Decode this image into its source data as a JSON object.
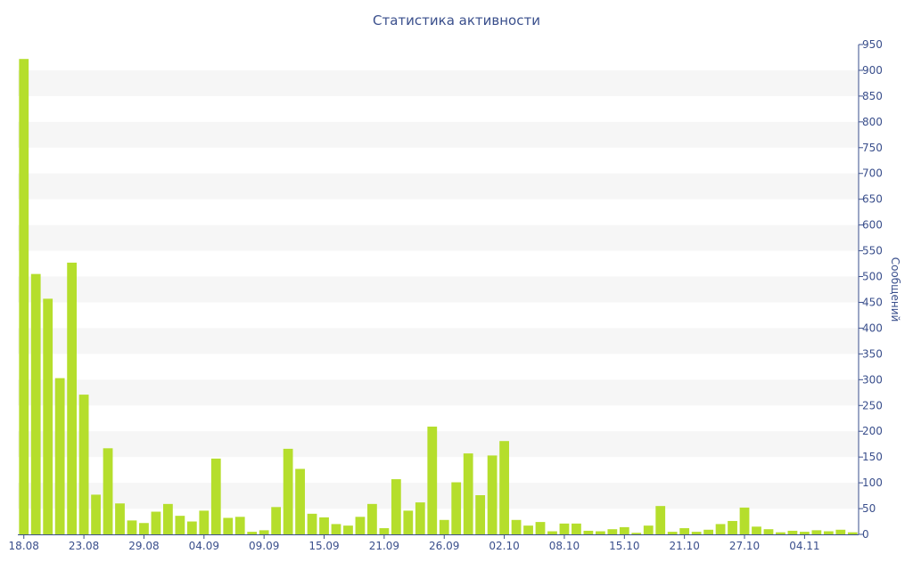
{
  "chart_data": {
    "type": "bar",
    "title": "Статистика активности",
    "ylabel": "Сообщений",
    "xlabel": "",
    "ylim": [
      0,
      950
    ],
    "y_tick_step": 50,
    "y_axis_side": "right",
    "grid": "alternating horizontal bands",
    "bar_color": "#b5de2c",
    "band_color": "#f6f6f6",
    "text_color": "#3a4f8c",
    "x_tick_labels": [
      {
        "index": 0,
        "label": "18.08"
      },
      {
        "index": 5,
        "label": "23.08"
      },
      {
        "index": 10,
        "label": "29.08"
      },
      {
        "index": 15,
        "label": "04.09"
      },
      {
        "index": 20,
        "label": "09.09"
      },
      {
        "index": 25,
        "label": "15.09"
      },
      {
        "index": 30,
        "label": "21.09"
      },
      {
        "index": 35,
        "label": "26.09"
      },
      {
        "index": 40,
        "label": "02.10"
      },
      {
        "index": 45,
        "label": "08.10"
      },
      {
        "index": 50,
        "label": "15.10"
      },
      {
        "index": 55,
        "label": "21.10"
      },
      {
        "index": 60,
        "label": "27.10"
      },
      {
        "index": 65,
        "label": "04.11"
      }
    ],
    "values": [
      922,
      505,
      457,
      303,
      527,
      271,
      77,
      167,
      60,
      27,
      22,
      44,
      59,
      36,
      25,
      46,
      147,
      32,
      34,
      5,
      8,
      53,
      166,
      127,
      40,
      33,
      20,
      17,
      34,
      59,
      12,
      107,
      46,
      62,
      209,
      28,
      101,
      157,
      76,
      153,
      181,
      28,
      17,
      24,
      6,
      21,
      21,
      7,
      6,
      10,
      14,
      3,
      17,
      55,
      5,
      12,
      5,
      9,
      20,
      26,
      52,
      15,
      10,
      4,
      7,
      5,
      8,
      6,
      9,
      4
    ]
  }
}
